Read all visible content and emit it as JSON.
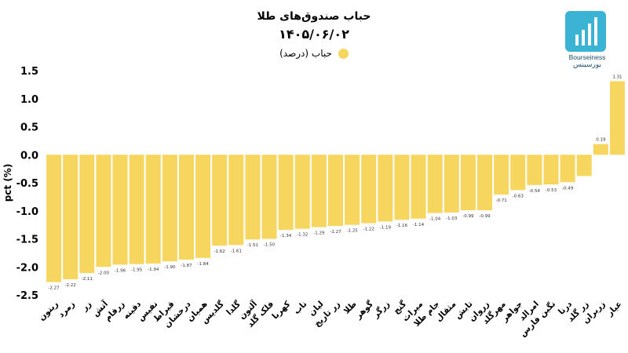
{
  "title": "حباب صندوق‌های طلا",
  "subtitle": "۱۴۰۵/۰۶/۰۲",
  "legend": {
    "label": "حباب (درصد)"
  },
  "logo": {
    "name_en": "Bourseiness",
    "name_fa": "بورسینس",
    "color": "#3bb3d5"
  },
  "chart_data": {
    "type": "bar",
    "ylabel": "pct (%)",
    "ylim": [
      -2.5,
      1.5
    ],
    "yticks": [
      "1.5",
      "1.0",
      "0.5",
      "0.0",
      "-0.5",
      "-1.0",
      "-1.5",
      "-2.0",
      "-2.5"
    ],
    "grid": false,
    "legend_position": "top-center",
    "bar_color": "#f7d65f",
    "categories": [
      "ریتون",
      "زمرد",
      "زر",
      "آتش",
      "زرفام",
      "دفینه",
      "نفیس",
      "قیراط",
      "درخشان",
      "همیان",
      "گلدیس",
      "گلدا",
      "آلتون",
      "فلک گلد",
      "کهربا",
      "ناب",
      "لیان",
      "زر تاریخ",
      "طلا",
      "گوهر",
      "زرگر",
      "گنج",
      "میراث",
      "جام طلا",
      "مثقال",
      "تابش",
      "زروان",
      "مهرگلد",
      "جواهر",
      "امرالد",
      "نگین فارس",
      "درنا",
      "زر گلد",
      "زربران",
      "عیار"
    ],
    "values": [
      -2.27,
      -2.22,
      -2.11,
      -2.0,
      -1.96,
      -1.95,
      -1.94,
      -1.9,
      -1.87,
      -1.84,
      -1.62,
      -1.61,
      -1.51,
      -1.5,
      -1.34,
      -1.32,
      -1.29,
      -1.27,
      -1.25,
      -1.22,
      -1.19,
      -1.16,
      -1.14,
      -1.04,
      -1.03,
      -0.99,
      -0.99,
      -0.71,
      -0.63,
      -0.54,
      -0.53,
      -0.49,
      -0.38,
      0.19,
      1.31
    ],
    "data_labels": [
      "-2.27",
      "-2.22",
      "-2.11",
      "-2.00",
      "-1.96",
      "-1.95",
      "-1.94",
      "-1.90",
      "-1.87",
      "-1.84",
      "-1.62",
      "-1.61",
      "-1.51",
      "-1.50",
      "-1.34",
      "-1.32",
      "-1.29",
      "-1.27",
      "-1.25",
      "-1.22",
      "-1.19",
      "-1.16",
      "-1.14",
      "-1.04",
      "-1.03",
      "-0.99",
      "-0.99",
      "-0.71",
      "-0.63",
      "-0.54",
      "-0.53",
      "-0.49",
      "",
      "0.19",
      "1.31"
    ]
  }
}
